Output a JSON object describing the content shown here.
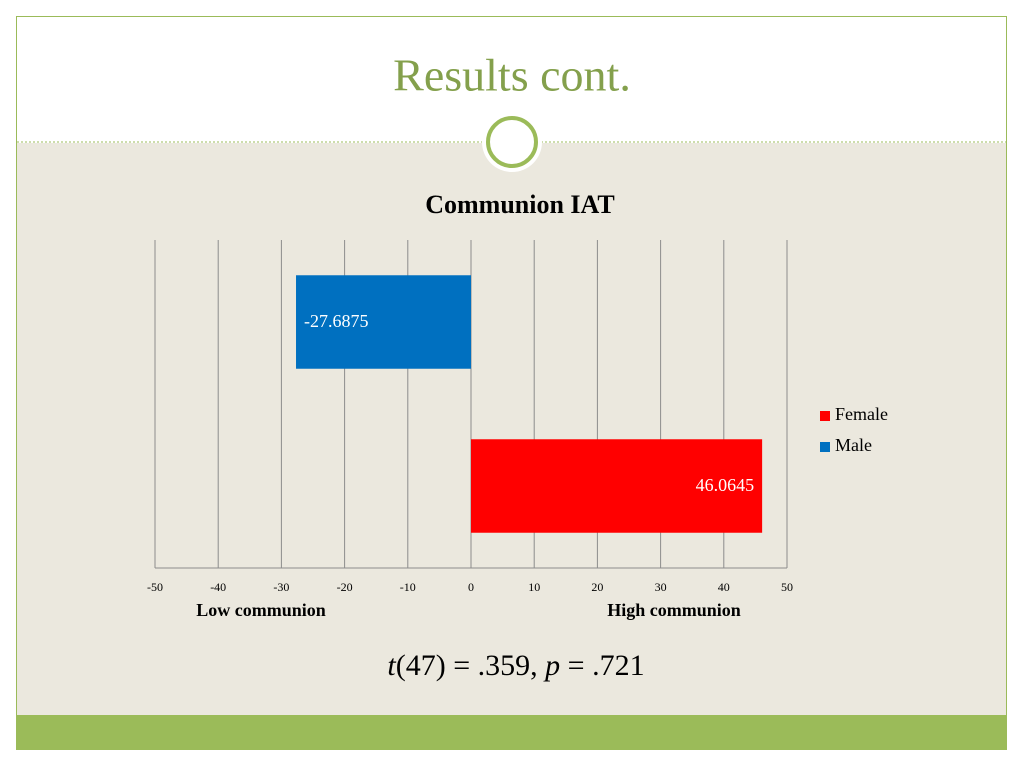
{
  "slide_title": "Results cont.",
  "chart_data": {
    "type": "bar",
    "orientation": "horizontal",
    "title": "Communion IAT",
    "categories": [
      null
    ],
    "series": [
      {
        "name": "Female",
        "color": "#ff0000",
        "values": [
          46.0645
        ]
      },
      {
        "name": "Male",
        "color": "#0070c0",
        "values": [
          -27.6875
        ]
      }
    ],
    "xlim": [
      -50,
      50
    ],
    "xticks": [
      -50,
      -40,
      -30,
      -20,
      -10,
      0,
      10,
      20,
      30,
      40,
      50
    ],
    "grid": true,
    "legend": "right",
    "annotations": [
      "Low communion",
      "High communion"
    ]
  },
  "statistic": [
    "t",
    "(47) = .359, ",
    "p",
    " = .721"
  ]
}
